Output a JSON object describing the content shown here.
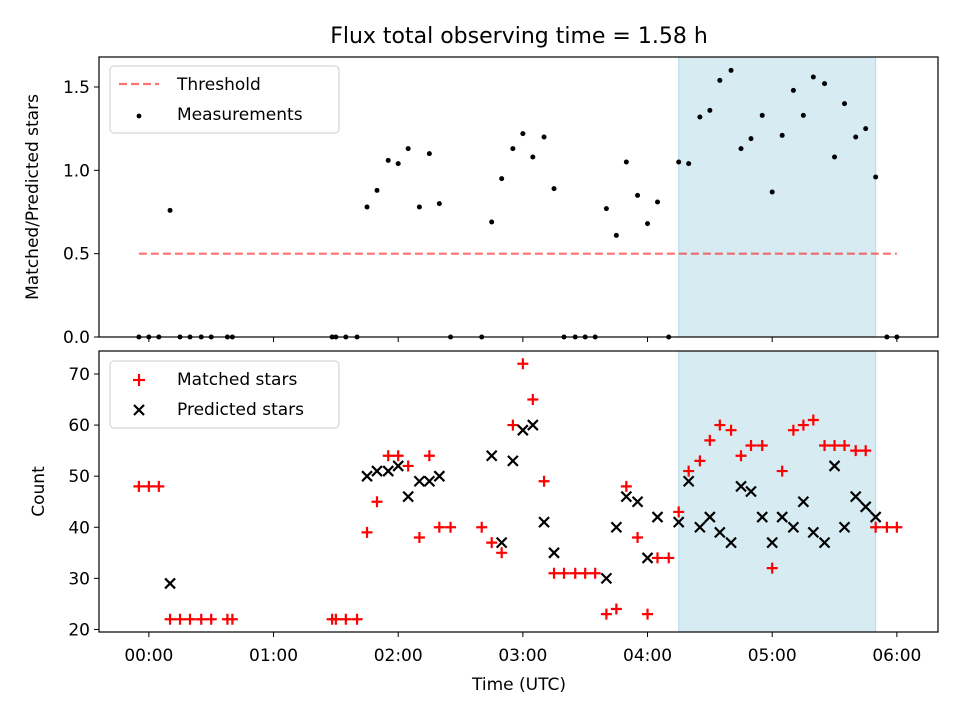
{
  "title": "Flux total observing time = 1.58 h",
  "colors": {
    "shade": "#add8e6",
    "threshold": "#ff0000",
    "matched": "#ff0000",
    "predicted": "#000000",
    "measurement": "#000000"
  },
  "chart_data": [
    {
      "type": "scatter",
      "panel": "top",
      "ylabel": "Matched/Predicted stars",
      "ylim": [
        0,
        1.68
      ],
      "yticks": [
        "0.0",
        "0.5",
        "1.0",
        "1.5"
      ],
      "ytick_values": [
        0,
        0.5,
        1.0,
        1.5
      ],
      "xlim_hours": [
        -0.4,
        6.33
      ],
      "shaded_region_hours": [
        4.25,
        5.83
      ],
      "threshold": {
        "name": "Threshold",
        "y": 0.5,
        "x_hours": [
          -0.08,
          6.0
        ]
      },
      "legend": [
        "Threshold",
        "Measurements"
      ],
      "legend_position": "top-left",
      "series": [
        {
          "name": "Measurements",
          "points": [
            [
              -0.08,
              0
            ],
            [
              0.0,
              0
            ],
            [
              0.08,
              0
            ],
            [
              0.17,
              0.76
            ],
            [
              0.25,
              0
            ],
            [
              0.33,
              0
            ],
            [
              0.42,
              0
            ],
            [
              0.5,
              0
            ],
            [
              0.63,
              0
            ],
            [
              0.67,
              0
            ],
            [
              1.47,
              0
            ],
            [
              1.5,
              0
            ],
            [
              1.58,
              0
            ],
            [
              1.67,
              0
            ],
            [
              1.75,
              0.78
            ],
            [
              1.83,
              0.88
            ],
            [
              1.92,
              1.06
            ],
            [
              2.0,
              1.04
            ],
            [
              2.08,
              1.13
            ],
            [
              2.17,
              0.78
            ],
            [
              2.25,
              1.1
            ],
            [
              2.33,
              0.8
            ],
            [
              2.42,
              0
            ],
            [
              2.67,
              0
            ],
            [
              2.75,
              0.69
            ],
            [
              2.83,
              0.95
            ],
            [
              2.92,
              1.13
            ],
            [
              3.0,
              1.22
            ],
            [
              3.08,
              1.08
            ],
            [
              3.17,
              1.2
            ],
            [
              3.25,
              0.89
            ],
            [
              3.33,
              0
            ],
            [
              3.42,
              0
            ],
            [
              3.5,
              0
            ],
            [
              3.58,
              0
            ],
            [
              3.67,
              0.77
            ],
            [
              3.75,
              0.61
            ],
            [
              3.83,
              1.05
            ],
            [
              3.92,
              0.85
            ],
            [
              4.0,
              0.68
            ],
            [
              4.08,
              0.81
            ],
            [
              4.17,
              0
            ],
            [
              4.25,
              1.05
            ],
            [
              4.33,
              1.04
            ],
            [
              4.42,
              1.32
            ],
            [
              4.5,
              1.36
            ],
            [
              4.58,
              1.54
            ],
            [
              4.67,
              1.6
            ],
            [
              4.75,
              1.13
            ],
            [
              4.83,
              1.19
            ],
            [
              4.92,
              1.33
            ],
            [
              5.0,
              0.87
            ],
            [
              5.08,
              1.21
            ],
            [
              5.17,
              1.48
            ],
            [
              5.25,
              1.33
            ],
            [
              5.33,
              1.56
            ],
            [
              5.42,
              1.52
            ],
            [
              5.5,
              1.08
            ],
            [
              5.58,
              1.4
            ],
            [
              5.67,
              1.2
            ],
            [
              5.75,
              1.25
            ],
            [
              5.83,
              0.96
            ],
            [
              5.92,
              0
            ],
            [
              6.0,
              0
            ]
          ]
        }
      ]
    },
    {
      "type": "scatter",
      "panel": "bottom",
      "title": "",
      "xlabel": "Time (UTC)",
      "ylabel": "Count",
      "ylim": [
        19.5,
        74.5
      ],
      "yticks": [
        "20",
        "30",
        "40",
        "50",
        "60",
        "70"
      ],
      "ytick_values": [
        20,
        30,
        40,
        50,
        60,
        70
      ],
      "xlim_hours": [
        -0.4,
        6.33
      ],
      "xticks": [
        "00:00",
        "01:00",
        "02:00",
        "03:00",
        "04:00",
        "05:00",
        "06:00"
      ],
      "xtick_hours": [
        0,
        1,
        2,
        3,
        4,
        5,
        6
      ],
      "shaded_region_hours": [
        4.25,
        5.83
      ],
      "legend": [
        "Matched stars",
        "Predicted stars"
      ],
      "legend_position": "top-left",
      "series": [
        {
          "name": "Matched stars",
          "marker": "plus",
          "points": [
            [
              -0.08,
              48
            ],
            [
              0.0,
              48
            ],
            [
              0.08,
              48
            ],
            [
              0.17,
              22
            ],
            [
              0.25,
              22
            ],
            [
              0.33,
              22
            ],
            [
              0.42,
              22
            ],
            [
              0.5,
              22
            ],
            [
              0.63,
              22
            ],
            [
              0.67,
              22
            ],
            [
              1.47,
              22
            ],
            [
              1.5,
              22
            ],
            [
              1.58,
              22
            ],
            [
              1.67,
              22
            ],
            [
              1.75,
              39
            ],
            [
              1.83,
              45
            ],
            [
              1.92,
              54
            ],
            [
              2.0,
              54
            ],
            [
              2.08,
              52
            ],
            [
              2.17,
              38
            ],
            [
              2.25,
              54
            ],
            [
              2.33,
              40
            ],
            [
              2.42,
              40
            ],
            [
              2.67,
              40
            ],
            [
              2.75,
              37
            ],
            [
              2.83,
              35
            ],
            [
              2.92,
              60
            ],
            [
              3.0,
              72
            ],
            [
              3.08,
              65
            ],
            [
              3.17,
              49
            ],
            [
              3.25,
              31
            ],
            [
              3.33,
              31
            ],
            [
              3.42,
              31
            ],
            [
              3.5,
              31
            ],
            [
              3.58,
              31
            ],
            [
              3.67,
              23
            ],
            [
              3.75,
              24
            ],
            [
              3.83,
              48
            ],
            [
              3.92,
              38
            ],
            [
              4.0,
              23
            ],
            [
              4.08,
              34
            ],
            [
              4.17,
              34
            ],
            [
              4.25,
              43
            ],
            [
              4.33,
              51
            ],
            [
              4.42,
              53
            ],
            [
              4.5,
              57
            ],
            [
              4.58,
              60
            ],
            [
              4.67,
              59
            ],
            [
              4.75,
              54
            ],
            [
              4.83,
              56
            ],
            [
              4.92,
              56
            ],
            [
              5.0,
              32
            ],
            [
              5.08,
              51
            ],
            [
              5.17,
              59
            ],
            [
              5.25,
              60
            ],
            [
              5.33,
              61
            ],
            [
              5.42,
              56
            ],
            [
              5.5,
              56
            ],
            [
              5.58,
              56
            ],
            [
              5.67,
              55
            ],
            [
              5.75,
              55
            ],
            [
              5.83,
              40
            ],
            [
              5.92,
              40
            ],
            [
              6.0,
              40
            ]
          ]
        },
        {
          "name": "Predicted stars",
          "marker": "x",
          "points": [
            [
              0.17,
              29
            ],
            [
              1.75,
              50
            ],
            [
              1.83,
              51
            ],
            [
              1.92,
              51
            ],
            [
              2.0,
              52
            ],
            [
              2.08,
              46
            ],
            [
              2.17,
              49
            ],
            [
              2.25,
              49
            ],
            [
              2.33,
              50
            ],
            [
              2.75,
              54
            ],
            [
              2.83,
              37
            ],
            [
              2.92,
              53
            ],
            [
              3.0,
              59
            ],
            [
              3.08,
              60
            ],
            [
              3.17,
              41
            ],
            [
              3.25,
              35
            ],
            [
              3.67,
              30
            ],
            [
              3.75,
              40
            ],
            [
              3.83,
              46
            ],
            [
              3.92,
              45
            ],
            [
              4.0,
              34
            ],
            [
              4.08,
              42
            ],
            [
              4.25,
              41
            ],
            [
              4.33,
              49
            ],
            [
              4.42,
              40
            ],
            [
              4.5,
              42
            ],
            [
              4.58,
              39
            ],
            [
              4.67,
              37
            ],
            [
              4.75,
              48
            ],
            [
              4.83,
              47
            ],
            [
              4.92,
              42
            ],
            [
              5.0,
              37
            ],
            [
              5.08,
              42
            ],
            [
              5.17,
              40
            ],
            [
              5.25,
              45
            ],
            [
              5.33,
              39
            ],
            [
              5.42,
              37
            ],
            [
              5.5,
              52
            ],
            [
              5.58,
              40
            ],
            [
              5.67,
              46
            ],
            [
              5.75,
              44
            ],
            [
              5.83,
              42
            ]
          ]
        }
      ]
    }
  ]
}
